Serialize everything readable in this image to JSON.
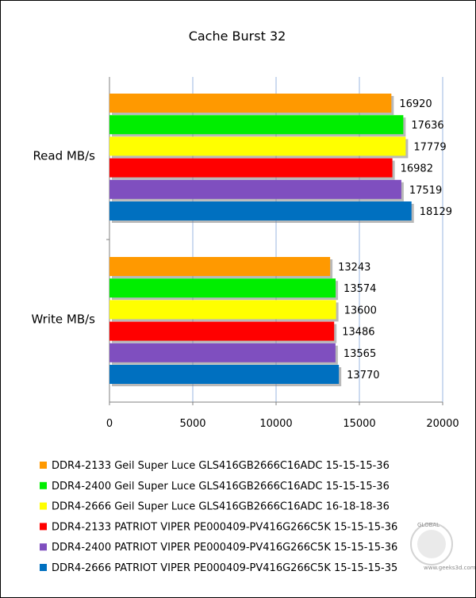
{
  "chart_data": {
    "type": "bar",
    "orientation": "horizontal",
    "title": "Cache Burst 32",
    "categories": [
      "Read MB/s",
      "Write MB/s"
    ],
    "series": [
      {
        "name": "DDR4-2133 Geil Super Luce GLS416GB2666C16ADC 15-15-15-36",
        "color": "#ff9900",
        "values": [
          16920,
          13243
        ]
      },
      {
        "name": "DDR4-2400 Geil Super Luce GLS416GB2666C16ADC 15-15-15-36",
        "color": "#00ee00",
        "values": [
          17636,
          13574
        ]
      },
      {
        "name": "DDR4-2666 Geil Super Luce GLS416GB2666C16ADC 16-18-18-36",
        "color": "#ffff00",
        "values": [
          17779,
          13600
        ]
      },
      {
        "name": "DDR4-2133 PATRIOT VIPER PE000409-PV416G266C5K 15-15-15-36",
        "color": "#ff0000",
        "values": [
          16982,
          13486
        ]
      },
      {
        "name": "DDR4-2400 PATRIOT VIPER PE000409-PV416G266C5K 15-15-15-36",
        "color": "#7f4fbf",
        "values": [
          17519,
          13565
        ]
      },
      {
        "name": "DDR4-2666 PATRIOT VIPER PE000409-PV416G266C5K 15-15-15-35",
        "color": "#0070c0",
        "values": [
          18129,
          13770
        ]
      }
    ],
    "xlim": [
      0,
      20000
    ],
    "xticks": [
      0,
      5000,
      10000,
      15000,
      20000
    ],
    "grid": true,
    "legend_position": "bottom"
  },
  "watermark": {
    "brand": "GLOBAL",
    "url": "www.geeks3d.com"
  }
}
